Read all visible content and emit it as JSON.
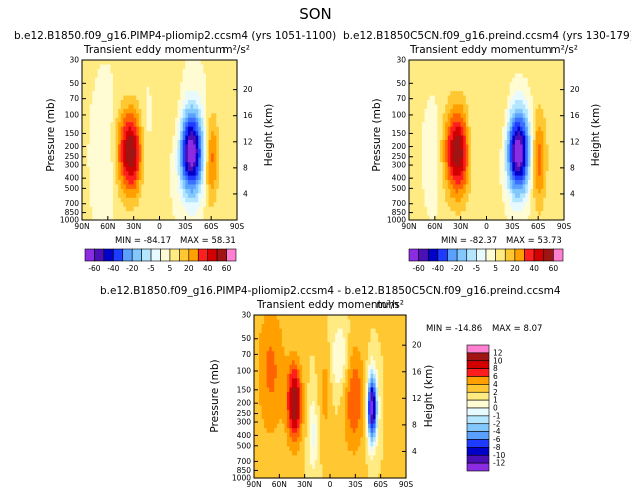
{
  "page_title": "SON",
  "colors": {
    "levels": [
      "#8b2be2",
      "#4b0fb8",
      "#0000c8",
      "#1e3cff",
      "#3c6eff",
      "#5aa0ff",
      "#82c8ff",
      "#b4e6ff",
      "#e6faff",
      "#fffbd2",
      "#ffeb82",
      "#ffc832",
      "#ffa000",
      "#ff6400",
      "#ff1e1e",
      "#d20000",
      "#a01414",
      "#ff7fd0"
    ]
  },
  "chart_data": [
    {
      "id": "pliomip2",
      "type": "heatmap",
      "run_title": "b.e12.B1850.f09_g16.PIMP4-pliomip2.ccsm4 (yrs 1051-1100)",
      "field": "Transient eddy momentum",
      "units": "m²/s²",
      "xlabel": "",
      "ylabel": "Pressure (mb)",
      "y2label": "Height (km)",
      "x_ticks": [
        "90N",
        "60N",
        "30N",
        "0",
        "30S",
        "60S",
        "90S"
      ],
      "y_ticks": [
        "30",
        "50",
        "70",
        "100",
        "150",
        "200",
        "250",
        "300",
        "400",
        "500",
        "700",
        "850",
        "1000"
      ],
      "y_tick_values": [
        30,
        50,
        70,
        100,
        150,
        200,
        250,
        300,
        400,
        500,
        700,
        850,
        1000
      ],
      "height_ticks": [
        "4",
        "8",
        "12",
        "16",
        "20"
      ],
      "height_tick_values": [
        4,
        8,
        12,
        16,
        20
      ],
      "xlim": [
        90,
        -90
      ],
      "ylim": [
        1000,
        30
      ],
      "min_label": "MIN = -84.17",
      "max_label": "MAX = 58.31",
      "min": -84.17,
      "max": 58.31,
      "features": [
        {
          "lat": 33,
          "p": 225,
          "peak": 58.31,
          "lat_width": 11,
          "p_log_width": 0.28
        },
        {
          "lat": -37,
          "p": 225,
          "peak": -84.17,
          "lat_width": 10,
          "p_log_width": 0.28
        },
        {
          "lat": -60,
          "p": 260,
          "peak": 30,
          "lat_width": 6,
          "p_log_width": 0.3
        },
        {
          "lat": 18,
          "p": 200,
          "peak": -15,
          "lat_width": 6,
          "p_log_width": 0.28
        },
        {
          "lat": 62,
          "p": 250,
          "peak": -10,
          "lat_width": 8,
          "p_log_width": 0.35
        },
        {
          "lat": -20,
          "p": 150,
          "peak": 10,
          "lat_width": 6,
          "p_log_width": 0.35
        }
      ],
      "colorbar": {
        "labels": [
          "-60",
          "-40",
          "-20",
          "-5",
          "5",
          "20",
          "40",
          "60"
        ]
      }
    },
    {
      "id": "preind",
      "type": "heatmap",
      "run_title": "b.e12.B1850C5CN.f09_g16.preind.ccsm4 (yrs 130-179)",
      "field": "Transient eddy momentum",
      "units": "m²/s²",
      "xlabel": "",
      "ylabel": "Pressure (mb)",
      "y2label": "Height (km)",
      "x_ticks": [
        "90N",
        "60N",
        "30N",
        "0",
        "30S",
        "60S",
        "90S"
      ],
      "y_ticks": [
        "30",
        "50",
        "70",
        "100",
        "150",
        "200",
        "250",
        "300",
        "400",
        "500",
        "700",
        "850",
        "1000"
      ],
      "y_tick_values": [
        30,
        50,
        70,
        100,
        150,
        200,
        250,
        300,
        400,
        500,
        700,
        850,
        1000
      ],
      "height_ticks": [
        "4",
        "8",
        "12",
        "16",
        "20"
      ],
      "height_tick_values": [
        4,
        8,
        12,
        16,
        20
      ],
      "xlim": [
        90,
        -90
      ],
      "ylim": [
        1000,
        30
      ],
      "min_label": "MIN = -82.37",
      "max_label": "MAX = 53.73",
      "min": -82.37,
      "max": 53.73,
      "features": [
        {
          "lat": 33,
          "p": 225,
          "peak": 53.73,
          "lat_width": 11,
          "p_log_width": 0.28
        },
        {
          "lat": -37,
          "p": 225,
          "peak": -82.37,
          "lat_width": 10,
          "p_log_width": 0.28
        },
        {
          "lat": -60,
          "p": 260,
          "peak": 30,
          "lat_width": 6,
          "p_log_width": 0.3
        },
        {
          "lat": 18,
          "p": 200,
          "peak": -15,
          "lat_width": 6,
          "p_log_width": 0.28
        },
        {
          "lat": 62,
          "p": 250,
          "peak": -10,
          "lat_width": 8,
          "p_log_width": 0.35
        },
        {
          "lat": -20,
          "p": 150,
          "peak": 10,
          "lat_width": 6,
          "p_log_width": 0.35
        }
      ],
      "colorbar": {
        "labels": [
          "-60",
          "-40",
          "-20",
          "-5",
          "5",
          "20",
          "40",
          "60"
        ]
      }
    },
    {
      "id": "difference",
      "type": "heatmap",
      "run_title": "b.e12.B1850.f09_g16.PIMP4-pliomip2.ccsm4 - b.e12.B1850C5CN.f09_g16.preind.ccsm4",
      "field": "Transient eddy momentum",
      "units": "m²/s²",
      "xlabel": "",
      "ylabel": "Pressure (mb)",
      "y2label": "Height (km)",
      "x_ticks": [
        "90N",
        "60N",
        "30N",
        "0",
        "30S",
        "60S",
        "90S"
      ],
      "y_ticks": [
        "30",
        "50",
        "70",
        "100",
        "150",
        "200",
        "250",
        "300",
        "400",
        "500",
        "700",
        "850",
        "1000"
      ],
      "y_tick_values": [
        30,
        50,
        70,
        100,
        150,
        200,
        250,
        300,
        400,
        500,
        700,
        850,
        1000
      ],
      "height_ticks": [
        "4",
        "8",
        "12",
        "16",
        "20"
      ],
      "height_tick_values": [
        4,
        8,
        12,
        16,
        20
      ],
      "xlim": [
        90,
        -90
      ],
      "ylim": [
        1000,
        30
      ],
      "min_label": "MIN = -14.86",
      "max_label": "MAX =   8.07",
      "min": -14.86,
      "max": 8.07,
      "features": [
        {
          "lat": 42,
          "p": 200,
          "peak": 8.07,
          "lat_width": 6,
          "p_log_width": 0.25
        },
        {
          "lat": -50,
          "p": 220,
          "peak": -14.86,
          "lat_width": 4,
          "p_log_width": 0.22
        },
        {
          "lat": -28,
          "p": 180,
          "peak": 4,
          "lat_width": 9,
          "p_log_width": 0.35
        },
        {
          "lat": -12,
          "p": 80,
          "peak": -3,
          "lat_width": 8,
          "p_log_width": 0.25
        },
        {
          "lat": 70,
          "p": 100,
          "peak": 3,
          "lat_width": 12,
          "p_log_width": 0.45
        },
        {
          "lat": 20,
          "p": 400,
          "peak": -3,
          "lat_width": 4,
          "p_log_width": 0.25
        },
        {
          "lat": 5,
          "p": 150,
          "peak": 2,
          "lat_width": 5,
          "p_log_width": 0.3
        }
      ],
      "colorbar": {
        "labels": [
          "12",
          "10",
          "8",
          "6",
          "4",
          "2",
          "1",
          "0",
          "-1",
          "-2",
          "-4",
          "-6",
          "-8",
          "-10",
          "-12"
        ]
      }
    }
  ]
}
